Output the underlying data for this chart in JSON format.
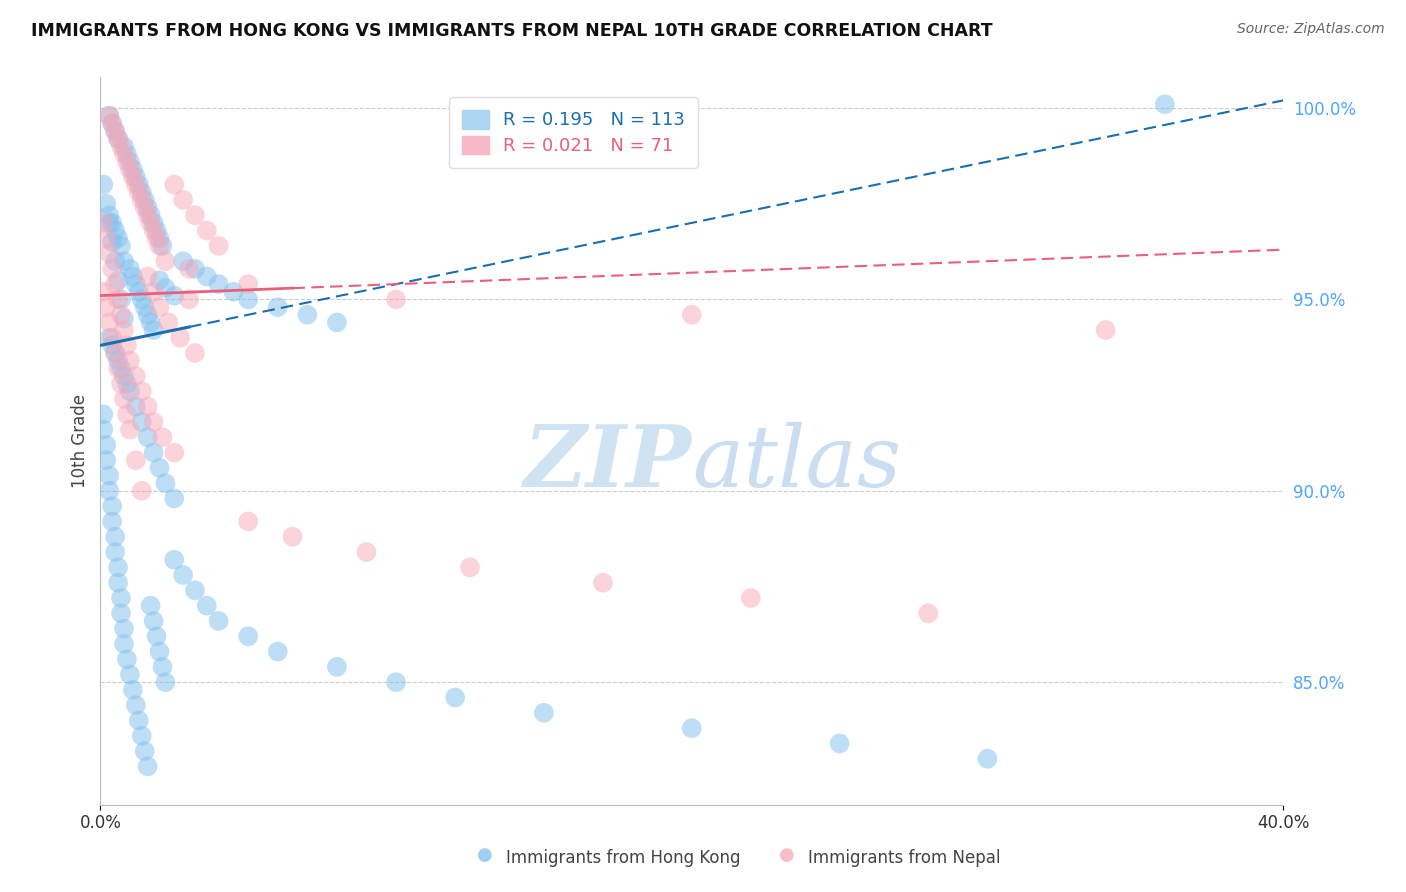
{
  "title": "IMMIGRANTS FROM HONG KONG VS IMMIGRANTS FROM NEPAL 10TH GRADE CORRELATION CHART",
  "source": "Source: ZipAtlas.com",
  "ylabel": "10th Grade",
  "series1_label": "Immigrants from Hong Kong",
  "series2_label": "Immigrants from Nepal",
  "series1_color": "#7fbfef",
  "series2_color": "#f9a8b8",
  "series1_R": 0.195,
  "series1_N": 113,
  "series2_R": 0.021,
  "series2_N": 71,
  "xlim": [
    0.0,
    0.4
  ],
  "ylim": [
    0.818,
    1.008
  ],
  "yticks": [
    0.85,
    0.9,
    0.95,
    1.0
  ],
  "ytick_labels": [
    "85.0%",
    "90.0%",
    "95.0%",
    "100.0%"
  ],
  "xticks": [
    0.0,
    0.4
  ],
  "xtick_labels": [
    "0.0%",
    "40.0%"
  ],
  "watermark_ZIP": "ZIP",
  "watermark_atlas": "atlas",
  "trend1_x": [
    0.0,
    0.4
  ],
  "trend1_y": [
    0.938,
    1.002
  ],
  "trend2_x": [
    0.0,
    0.4
  ],
  "trend2_y": [
    0.951,
    0.963
  ],
  "trend1_solid_end": 0.03,
  "trend2_solid_end": 0.065,
  "hk_x": [
    0.003,
    0.004,
    0.005,
    0.006,
    0.008,
    0.009,
    0.01,
    0.011,
    0.012,
    0.013,
    0.014,
    0.015,
    0.016,
    0.017,
    0.018,
    0.019,
    0.02,
    0.021,
    0.003,
    0.004,
    0.005,
    0.006,
    0.007,
    0.008,
    0.01,
    0.011,
    0.012,
    0.013,
    0.014,
    0.015,
    0.016,
    0.017,
    0.018,
    0.02,
    0.022,
    0.025,
    0.003,
    0.004,
    0.005,
    0.006,
    0.007,
    0.008,
    0.009,
    0.01,
    0.012,
    0.014,
    0.016,
    0.018,
    0.02,
    0.022,
    0.025,
    0.028,
    0.032,
    0.036,
    0.04,
    0.045,
    0.05,
    0.06,
    0.07,
    0.08,
    0.001,
    0.001,
    0.002,
    0.002,
    0.003,
    0.003,
    0.004,
    0.004,
    0.005,
    0.005,
    0.006,
    0.006,
    0.007,
    0.007,
    0.008,
    0.008,
    0.009,
    0.01,
    0.011,
    0.012,
    0.013,
    0.014,
    0.015,
    0.016,
    0.017,
    0.018,
    0.019,
    0.02,
    0.021,
    0.022,
    0.025,
    0.028,
    0.032,
    0.036,
    0.04,
    0.05,
    0.06,
    0.08,
    0.1,
    0.12,
    0.15,
    0.2,
    0.25,
    0.3,
    0.36,
    0.001,
    0.002,
    0.003,
    0.004,
    0.005,
    0.006,
    0.007,
    0.008
  ],
  "hk_y": [
    0.998,
    0.996,
    0.994,
    0.992,
    0.99,
    0.988,
    0.986,
    0.984,
    0.982,
    0.98,
    0.978,
    0.976,
    0.974,
    0.972,
    0.97,
    0.968,
    0.966,
    0.964,
    0.972,
    0.97,
    0.968,
    0.966,
    0.964,
    0.96,
    0.958,
    0.956,
    0.954,
    0.952,
    0.95,
    0.948,
    0.946,
    0.944,
    0.942,
    0.955,
    0.953,
    0.951,
    0.94,
    0.938,
    0.936,
    0.934,
    0.932,
    0.93,
    0.928,
    0.926,
    0.922,
    0.918,
    0.914,
    0.91,
    0.906,
    0.902,
    0.898,
    0.96,
    0.958,
    0.956,
    0.954,
    0.952,
    0.95,
    0.948,
    0.946,
    0.944,
    0.92,
    0.916,
    0.912,
    0.908,
    0.904,
    0.9,
    0.896,
    0.892,
    0.888,
    0.884,
    0.88,
    0.876,
    0.872,
    0.868,
    0.864,
    0.86,
    0.856,
    0.852,
    0.848,
    0.844,
    0.84,
    0.836,
    0.832,
    0.828,
    0.87,
    0.866,
    0.862,
    0.858,
    0.854,
    0.85,
    0.882,
    0.878,
    0.874,
    0.87,
    0.866,
    0.862,
    0.858,
    0.854,
    0.85,
    0.846,
    0.842,
    0.838,
    0.834,
    0.83,
    1.001,
    0.98,
    0.975,
    0.97,
    0.965,
    0.96,
    0.955,
    0.95,
    0.945
  ],
  "np_x": [
    0.003,
    0.004,
    0.005,
    0.006,
    0.007,
    0.008,
    0.009,
    0.01,
    0.011,
    0.012,
    0.013,
    0.014,
    0.015,
    0.016,
    0.017,
    0.018,
    0.019,
    0.02,
    0.022,
    0.025,
    0.028,
    0.032,
    0.036,
    0.04,
    0.001,
    0.002,
    0.003,
    0.004,
    0.005,
    0.006,
    0.007,
    0.008,
    0.009,
    0.01,
    0.012,
    0.014,
    0.016,
    0.018,
    0.02,
    0.023,
    0.027,
    0.032,
    0.001,
    0.002,
    0.003,
    0.004,
    0.005,
    0.006,
    0.007,
    0.008,
    0.009,
    0.01,
    0.012,
    0.014,
    0.016,
    0.018,
    0.021,
    0.025,
    0.03,
    0.05,
    0.065,
    0.09,
    0.125,
    0.17,
    0.22,
    0.28,
    0.03,
    0.05,
    0.1,
    0.2,
    0.34
  ],
  "np_y": [
    0.998,
    0.996,
    0.994,
    0.992,
    0.99,
    0.988,
    0.986,
    0.984,
    0.982,
    0.98,
    0.978,
    0.976,
    0.974,
    0.972,
    0.97,
    0.968,
    0.966,
    0.964,
    0.96,
    0.98,
    0.976,
    0.972,
    0.968,
    0.964,
    0.952,
    0.948,
    0.944,
    0.94,
    0.936,
    0.932,
    0.928,
    0.924,
    0.92,
    0.916,
    0.908,
    0.9,
    0.956,
    0.952,
    0.948,
    0.944,
    0.94,
    0.936,
    0.97,
    0.966,
    0.962,
    0.958,
    0.954,
    0.95,
    0.946,
    0.942,
    0.938,
    0.934,
    0.93,
    0.926,
    0.922,
    0.918,
    0.914,
    0.91,
    0.95,
    0.892,
    0.888,
    0.884,
    0.88,
    0.876,
    0.872,
    0.868,
    0.958,
    0.954,
    0.95,
    0.946,
    0.942
  ]
}
